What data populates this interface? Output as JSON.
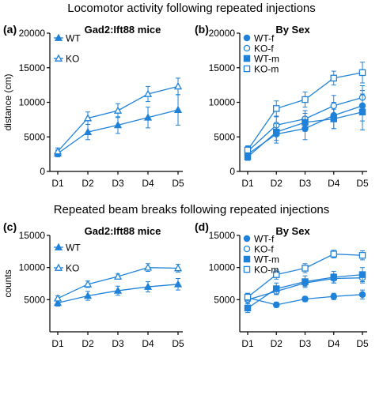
{
  "headings": [
    "Locomotor activity following repeated injections",
    "Repeated beam breaks following repeated injections"
  ],
  "panel_letters": [
    "(a)",
    "(b)",
    "(c)",
    "(d)"
  ],
  "colors": {
    "series": "#1f82d8",
    "axis": "#000000"
  },
  "chart_data": [
    {
      "id": "a",
      "type": "line",
      "title": "Gad2:Ift88 mice",
      "xlabel": "",
      "ylabel": "distance (cm)",
      "x": [
        "D1",
        "D2",
        "D3",
        "D4",
        "D5"
      ],
      "ylim": [
        0,
        20000
      ],
      "yticks": [
        0,
        5000,
        10000,
        15000,
        20000
      ],
      "grid": false,
      "legend": "top-left",
      "series": [
        {
          "name": "WT",
          "marker": "filled-triangle",
          "values": [
            2600,
            5700,
            6700,
            7800,
            8900
          ],
          "errors": [
            500,
            1100,
            1200,
            1500,
            2200
          ]
        },
        {
          "name": "KO",
          "marker": "open-triangle",
          "values": [
            2900,
            7700,
            8800,
            11200,
            12300
          ],
          "errors": [
            500,
            900,
            1000,
            1100,
            1200
          ]
        }
      ]
    },
    {
      "id": "b",
      "type": "line",
      "title": "By Sex",
      "xlabel": "",
      "ylabel": "",
      "x": [
        "D1",
        "D2",
        "D3",
        "D4",
        "D5"
      ],
      "ylim": [
        0,
        20000
      ],
      "yticks": [
        0,
        5000,
        10000,
        15000,
        20000
      ],
      "grid": false,
      "legend": "top-left",
      "series": [
        {
          "name": "WT-f",
          "marker": "filled-circle",
          "values": [
            2500,
            5400,
            6200,
            8100,
            9500
          ],
          "errors": [
            700,
            1300,
            1600,
            1900,
            2200
          ]
        },
        {
          "name": "KO-f",
          "marker": "open-circle",
          "values": [
            2900,
            6700,
            7600,
            9500,
            10700
          ],
          "errors": [
            700,
            1200,
            1200,
            1500,
            1700
          ]
        },
        {
          "name": "WT-m",
          "marker": "filled-square",
          "values": [
            2100,
            5700,
            7100,
            7600,
            8600
          ],
          "errors": [
            500,
            1200,
            1300,
            1400,
            2600
          ]
        },
        {
          "name": "KO-m",
          "marker": "open-square",
          "values": [
            3100,
            9100,
            10400,
            13500,
            14300
          ],
          "errors": [
            600,
            1100,
            1100,
            1000,
            1500
          ]
        }
      ]
    },
    {
      "id": "c",
      "type": "line",
      "title": "Gad2:Ift88 mice",
      "xlabel": "",
      "ylabel": "counts",
      "x": [
        "D1",
        "D2",
        "D3",
        "D4",
        "D5"
      ],
      "ylim": [
        0,
        15000
      ],
      "yticks": [
        5000,
        10000,
        15000
      ],
      "grid": false,
      "legend": "top-left",
      "series": [
        {
          "name": "WT",
          "marker": "filled-triangle",
          "values": [
            4500,
            5600,
            6400,
            7000,
            7400
          ],
          "errors": [
            500,
            700,
            700,
            800,
            900
          ]
        },
        {
          "name": "KO",
          "marker": "open-triangle",
          "values": [
            5200,
            7400,
            8600,
            10000,
            9900
          ],
          "errors": [
            400,
            500,
            400,
            600,
            600
          ]
        }
      ]
    },
    {
      "id": "d",
      "type": "line",
      "title": "By Sex",
      "xlabel": "",
      "ylabel": "",
      "x": [
        "D1",
        "D2",
        "D3",
        "D4",
        "D5"
      ],
      "ylim": [
        0,
        15000
      ],
      "yticks": [
        5000,
        10000,
        15000
      ],
      "grid": false,
      "legend": "top-left",
      "series": [
        {
          "name": "WT-f",
          "marker": "filled-circle",
          "values": [
            5300,
            4200,
            5100,
            5500,
            5800
          ],
          "errors": [
            600,
            400,
            400,
            500,
            700
          ]
        },
        {
          "name": "KO-f",
          "marker": "open-circle",
          "values": [
            5000,
            6300,
            7600,
            8300,
            8400
          ],
          "errors": [
            600,
            500,
            500,
            700,
            800
          ]
        },
        {
          "name": "WT-m",
          "marker": "filled-square",
          "values": [
            3700,
            6700,
            7800,
            8500,
            8900
          ],
          "errors": [
            700,
            900,
            900,
            900,
            1100
          ]
        },
        {
          "name": "KO-m",
          "marker": "open-square",
          "values": [
            5400,
            8900,
            9900,
            12100,
            11900
          ],
          "errors": [
            600,
            700,
            700,
            600,
            700
          ]
        }
      ]
    }
  ]
}
